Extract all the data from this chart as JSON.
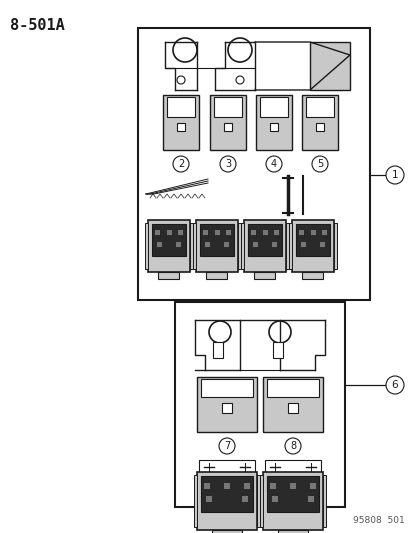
{
  "title": "8-501A",
  "footnote": "95808  501",
  "bg_color": "#ffffff",
  "line_color": "#1a1a1a",
  "gray_light": "#c8c8c8",
  "gray_mid": "#aaaaaa",
  "gray_dark": "#555555"
}
